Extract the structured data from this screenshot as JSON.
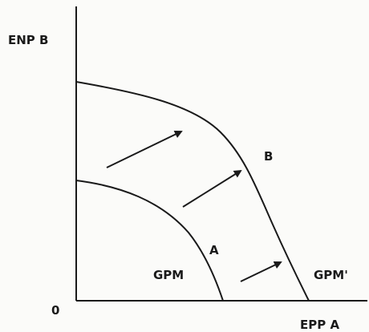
{
  "axes": {
    "y_label": "ENP B",
    "x_label": "EPP A",
    "origin": "0"
  },
  "curves": [
    {
      "name": "GPM",
      "point": "A"
    },
    {
      "name": "GPM'",
      "point": "B"
    }
  ]
}
